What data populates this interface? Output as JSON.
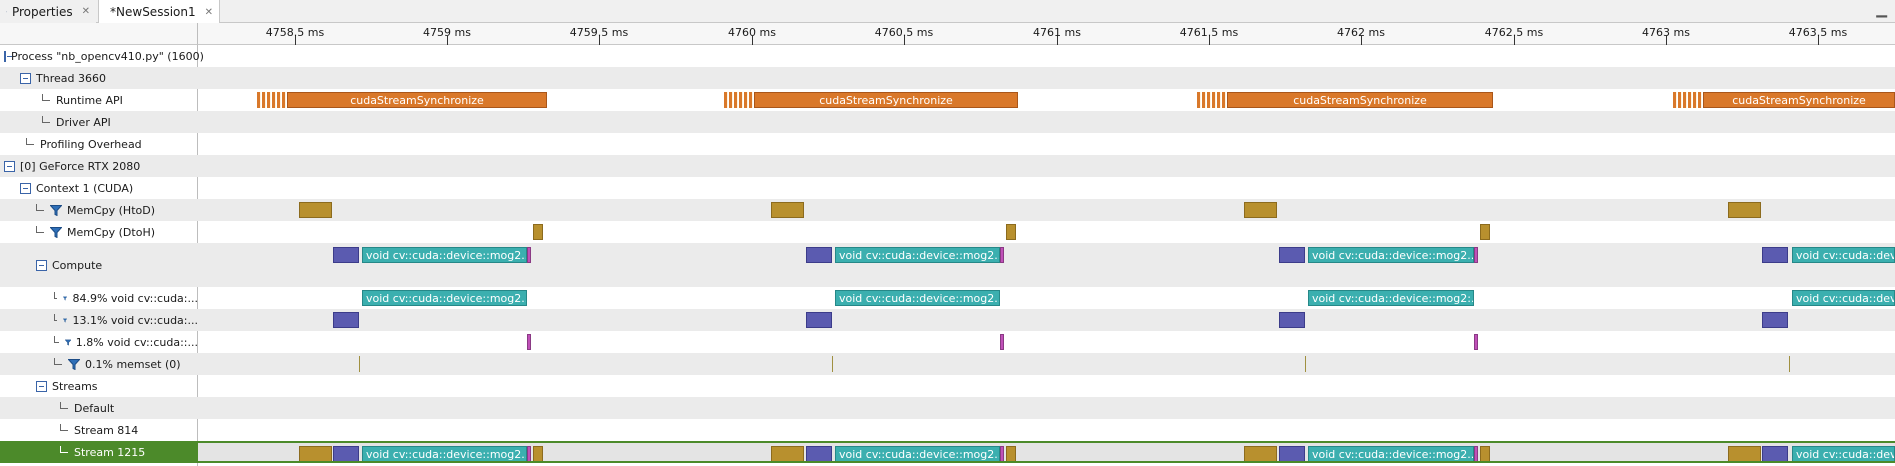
{
  "tabs": [
    {
      "label": "Properties",
      "icon": "table-icon",
      "active": false
    },
    {
      "label": "*NewSession1",
      "icon": "session-icon",
      "active": true
    }
  ],
  "ruler": {
    "unit": "ms",
    "ticks": [
      "4758.5 ms",
      "4759 ms",
      "4759.5 ms",
      "4760 ms",
      "4760.5 ms",
      "4761 ms",
      "4761.5 ms",
      "4762 ms",
      "4762.5 ms",
      "4763 ms",
      "4763.5 ms"
    ]
  },
  "tree": [
    {
      "label": "Process \"nb_opencv410.py\" (1600)",
      "kind": "toggle",
      "indent": 0
    },
    {
      "label": "Thread 3660",
      "kind": "toggle",
      "indent": 1
    },
    {
      "label": "Runtime API",
      "kind": "elbow",
      "indent": 2
    },
    {
      "label": "Driver API",
      "kind": "elbow",
      "indent": 2
    },
    {
      "label": "Profiling Overhead",
      "kind": "elbow",
      "indent": 1
    },
    {
      "label": "[0] GeForce RTX 2080",
      "kind": "toggle",
      "indent": 0
    },
    {
      "label": "Context 1 (CUDA)",
      "kind": "toggle",
      "indent": 1
    },
    {
      "label": "MemCpy (HtoD)",
      "kind": "filter",
      "indent": 2
    },
    {
      "label": "MemCpy (DtoH)",
      "kind": "filter",
      "indent": 2
    },
    {
      "label": "Compute",
      "kind": "toggle",
      "indent": 2
    },
    {
      "label": "84.9% void cv::cuda:...",
      "kind": "filter",
      "indent": 3
    },
    {
      "label": "13.1% void cv::cuda:...",
      "kind": "filter",
      "indent": 3
    },
    {
      "label": "1.8% void cv::cuda::...",
      "kind": "filter",
      "indent": 3
    },
    {
      "label": "0.1% memset (0)",
      "kind": "filter",
      "indent": 3
    },
    {
      "label": "Streams",
      "kind": "toggle",
      "indent": 2
    },
    {
      "label": "Default",
      "kind": "elbow",
      "indent": 3
    },
    {
      "label": "Stream 814",
      "kind": "elbow",
      "indent": 3
    },
    {
      "label": "Stream 1215",
      "kind": "elbow",
      "indent": 3,
      "selected": true
    }
  ],
  "labels": {
    "runtime": "cudaStreamSynchronize",
    "kernel": "void cv::cuda::device::mog2...",
    "kernel_short": "void cv::cuda::device::mog2:...",
    "kernel_cut": "void cv::cuda::device::mog2...",
    "kernel_edge": "void cv::cuda::device::mog2..."
  },
  "colors": {
    "runtime_api": "#d9782a",
    "memcpy": "#b8902e",
    "kernel_mog2_main": "#3bafaf",
    "kernel_mog2_secondary": "#5b5bb0",
    "kernel_small": "#c050b8",
    "selection": "#4c8a2a"
  }
}
